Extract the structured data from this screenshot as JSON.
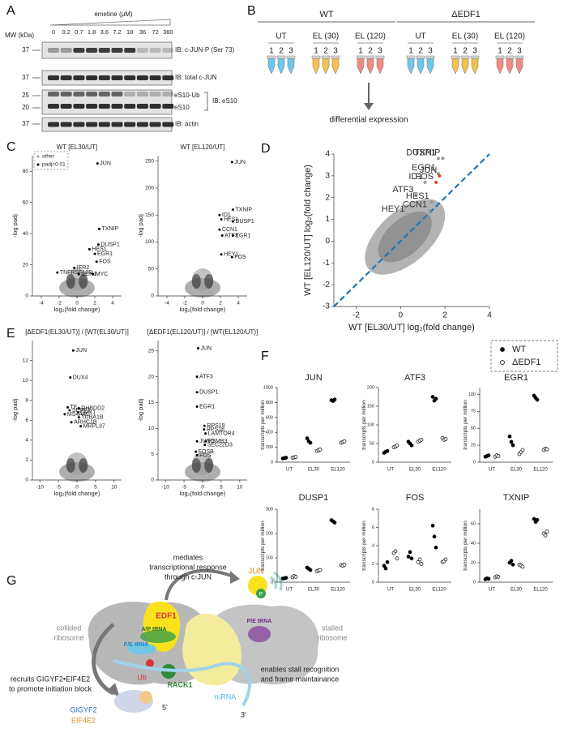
{
  "panel_labels": [
    "A",
    "B",
    "C",
    "D",
    "E",
    "F",
    "G"
  ],
  "blot": {
    "treatment": "emetine (μM)",
    "mw_header": "MW (kDa)",
    "concentrations": [
      "0",
      "0.2",
      "0.7",
      "1.8",
      "3.6",
      "7.2",
      "18",
      "36",
      "72",
      "360"
    ],
    "rows": [
      {
        "mw": [
          "37"
        ],
        "label": "IB: c-JUN-P (Ser 73)"
      },
      {
        "mw": [
          "37"
        ],
        "label": "IB: total c-JUN"
      },
      {
        "mw": [
          "25",
          "20"
        ],
        "bands": [
          "eS10-Ub",
          "eS10"
        ],
        "label": "IB: eS10"
      },
      {
        "mw": [
          "37"
        ],
        "label": "IB: actin"
      }
    ]
  },
  "design": {
    "genotypes": [
      {
        "name": "WT",
        "groups": [
          "UT",
          "EL (30)",
          "EL (120)"
        ]
      },
      {
        "name": "ΔEDF1",
        "groups": [
          "UT",
          "EL (30)",
          "EL (120)"
        ]
      }
    ],
    "replicates": [
      "1",
      "2",
      "3"
    ],
    "outcome": "differential expression"
  },
  "chart_data": [
    {
      "type": "volcano",
      "title": "WT [EL30/UT]",
      "x_label": "log₂(fold change)",
      "y_label": "-log padj",
      "xlim": [
        -5,
        5
      ],
      "ylim": [
        0,
        90
      ],
      "xticks": [
        -4,
        -2,
        0,
        2,
        4
      ],
      "yticks": [
        0,
        20,
        40,
        60,
        80
      ],
      "legend": [
        "other",
        "padj<0.01"
      ],
      "color": "#000000",
      "labels": [
        "JUN",
        "TXNIP",
        "DUSP1",
        "HES1",
        "EGR1",
        "FOS",
        "IER2",
        "TNFRSF10D",
        "CCN1",
        "MYC"
      ],
      "x": [
        2.3,
        2.5,
        2.4,
        1.4,
        2.0,
        2.2,
        -0.3,
        -2.2,
        0.2,
        1.8
      ],
      "values": [
        85,
        43,
        33,
        30,
        27,
        22,
        18,
        15,
        14,
        14
      ]
    },
    {
      "type": "volcano",
      "title": "WT [EL120/UT]",
      "x_label": "log₂(fold change)",
      "y_label": "-log padj",
      "xlim": [
        -5,
        5
      ],
      "ylim": [
        0,
        260
      ],
      "xticks": [
        -4,
        -2,
        0,
        2,
        4
      ],
      "yticks": [
        0,
        50,
        100,
        150,
        200,
        250
      ],
      "color": "#000000",
      "labels": [
        "JUN",
        "TXNIP",
        "ID1",
        "HES1",
        "DUSP1",
        "CCN1",
        "ATF3",
        "EGR1",
        "HEY1",
        "FOS"
      ],
      "x": [
        3.3,
        3.4,
        1.9,
        2.1,
        3.4,
        1.9,
        2.2,
        3.4,
        2.1,
        3.3
      ],
      "values": [
        248,
        160,
        150,
        142,
        138,
        123,
        112,
        112,
        77,
        72
      ]
    },
    {
      "type": "scatter",
      "x_label": "WT [EL30/UT] log₂(fold change)",
      "y_label": "WT [EL120/UT] log₂(fold change)",
      "xlim": [
        -3,
        4
      ],
      "ylim": [
        -3,
        4
      ],
      "xticks": [
        -2,
        0,
        2,
        4
      ],
      "yticks": [
        -3,
        -2,
        -1,
        0,
        1,
        2,
        3,
        4
      ],
      "diagonal": true,
      "line_color": "#1f77b4",
      "labels": [
        "DUSP1",
        "TXNIP",
        "EGR1",
        "JUN",
        "ID1",
        "FOS",
        "ATF3",
        "HES1",
        "CCN1",
        "HEY1"
      ],
      "x": [
        1.7,
        1.9,
        1.7,
        1.75,
        1.1,
        1.6,
        0.7,
        1.4,
        1.3,
        0.3
      ],
      "values": [
        3.8,
        3.8,
        3.1,
        3.0,
        2.7,
        2.7,
        2.1,
        1.8,
        1.4,
        1.2
      ],
      "colors": [
        "#999999",
        "#999999",
        "#999999",
        "#e0442a",
        "#999999",
        "#e0442a",
        "#999999",
        "#999999",
        "#999999",
        "#999999"
      ]
    },
    {
      "type": "volcano",
      "title": "[ΔEDF1(EL30/UT)] / [WT(EL30/UT)]",
      "x_label": "log₂(fold change)",
      "y_label": "-log padj",
      "xlim": [
        -12,
        12
      ],
      "ylim": [
        0,
        14
      ],
      "xticks": [
        -10,
        -5,
        0,
        5,
        10
      ],
      "yticks": [
        0,
        2,
        4,
        6,
        8,
        10,
        12
      ],
      "color": "#000000",
      "labels": [
        "JUN",
        "DUX4",
        "TF",
        "SERF2",
        "RHBDD2",
        "MS4A4E",
        "GPX1",
        "TUBA1B",
        "ARHC1B",
        "MRPL37"
      ],
      "x": [
        -1,
        -1.8,
        -2.5,
        -2,
        0.5,
        -3.3,
        0.3,
        0.5,
        -1.5,
        1
      ],
      "values": [
        13,
        10.3,
        7.3,
        7,
        7.2,
        6.6,
        6.8,
        6.3,
        5.8,
        5.4
      ]
    },
    {
      "type": "volcano",
      "title": "[ΔEDF1(EL120/UT)] / [WT(EL120/UT)]",
      "x_label": "log₂(fold change)",
      "y_label": "-log padj",
      "xlim": [
        -12,
        12
      ],
      "ylim": [
        0,
        27
      ],
      "xticks": [
        -10,
        -5,
        0,
        5,
        10
      ],
      "yticks": [
        0,
        5,
        10,
        15,
        20,
        25
      ],
      "color": "#000000",
      "labels": [
        "JUN",
        "ATF3",
        "DUSP1",
        "EGR1",
        "RPS19",
        "RPS18",
        "LAMTOR4",
        "JUND",
        "PSMB3",
        "SEC22D3",
        "FOSB",
        "FOS"
      ],
      "x": [
        -1.2,
        -1.5,
        -1.5,
        -1.5,
        0.5,
        0.4,
        0.8,
        -1.5,
        0.8,
        0.6,
        -1.8,
        -1.5
      ],
      "values": [
        25.5,
        20,
        17,
        14.2,
        10.5,
        9.8,
        9,
        7.5,
        7.5,
        6.8,
        5.5,
        4.8
      ]
    },
    {
      "type": "dot",
      "title": "JUN",
      "y_label": "transcripts per million",
      "categories": [
        "UT",
        "EL30",
        "EL120"
      ],
      "ylim": [
        0,
        1000
      ],
      "yticks": [
        0,
        200,
        400,
        600,
        800,
        1000
      ],
      "series": [
        {
          "marker": "filled",
          "color": "#000000",
          "values": [
            [
              50,
              55,
              60
            ],
            [
              320,
              280,
              260
            ],
            [
              830,
              820,
              840
            ]
          ]
        },
        {
          "marker": "open",
          "color": "#000000",
          "values": [
            [
              60,
              65,
              70
            ],
            [
              150,
              160,
              170
            ],
            [
              260,
              270,
              280
            ]
          ]
        }
      ]
    },
    {
      "type": "dot",
      "title": "ATF3",
      "y_label": "transcripts per million",
      "categories": [
        "UT",
        "EL30",
        "EL120"
      ],
      "ylim": [
        0,
        200
      ],
      "yticks": [
        0,
        50,
        100,
        150,
        200
      ],
      "series": [
        {
          "marker": "filled",
          "color": "#000000",
          "values": [
            [
              25,
              28,
              30
            ],
            [
              55,
              50,
              45
            ],
            [
              175,
              165,
              170
            ]
          ]
        },
        {
          "marker": "open",
          "color": "#000000",
          "values": [
            [
              40,
              42,
              45
            ],
            [
              55,
              58,
              60
            ],
            [
              65,
              60,
              62
            ]
          ]
        }
      ]
    },
    {
      "type": "dot",
      "title": "EGR1",
      "y_label": "transcripts per million",
      "categories": [
        "UT",
        "EL30",
        "EL120"
      ],
      "ylim": [
        0,
        110
      ],
      "yticks": [
        0,
        25,
        50,
        75,
        100
      ],
      "series": [
        {
          "marker": "filled",
          "color": "#000000",
          "values": [
            [
              8,
              9,
              10
            ],
            [
              38,
              30,
              25
            ],
            [
              98,
              95,
              92
            ]
          ]
        },
        {
          "marker": "open",
          "color": "#000000",
          "values": [
            [
              8,
              10,
              9
            ],
            [
              12,
              15,
              18
            ],
            [
              18,
              20,
              19
            ]
          ]
        }
      ]
    },
    {
      "type": "dot",
      "title": "DUSP1",
      "y_label": "transcripts per million",
      "categories": [
        "UT",
        "EL30",
        "EL120"
      ],
      "ylim": [
        0,
        300
      ],
      "yticks": [
        0,
        100,
        200,
        300
      ],
      "series": [
        {
          "marker": "filled",
          "color": "#000000",
          "values": [
            [
              15,
              16,
              18
            ],
            [
              60,
              55,
              50
            ],
            [
              255,
              250,
              245
            ]
          ]
        },
        {
          "marker": "open",
          "color": "#000000",
          "values": [
            [
              20,
              25,
              22
            ],
            [
              45,
              48,
              50
            ],
            [
              70,
              68,
              72
            ]
          ]
        }
      ]
    },
    {
      "type": "dot",
      "title": "FOS",
      "y_label": "transcripts per million",
      "categories": [
        "UT",
        "EL30",
        "EL120"
      ],
      "ylim": [
        0,
        8
      ],
      "yticks": [
        0,
        2,
        4,
        6,
        8
      ],
      "series": [
        {
          "marker": "filled",
          "color": "#000000",
          "values": [
            [
              1.8,
              1.5,
              2.2
            ],
            [
              2.8,
              3.3,
              2.6
            ],
            [
              6.2,
              5.0,
              3.8
            ]
          ]
        },
        {
          "marker": "open",
          "color": "#000000",
          "values": [
            [
              3.2,
              3.4,
              2.6
            ],
            [
              2.2,
              2.5,
              2.0
            ],
            [
              2.2,
              2.3,
              2.5
            ]
          ]
        }
      ]
    },
    {
      "type": "dot",
      "title": "TXNIP",
      "y_label": "transcripts per million",
      "categories": [
        "UT",
        "EL30",
        "EL120"
      ],
      "ylim": [
        0,
        75
      ],
      "yticks": [
        0,
        20,
        40,
        60
      ],
      "series": [
        {
          "marker": "filled",
          "color": "#000000",
          "values": [
            [
              3,
              4,
              3.5
            ],
            [
              20,
              22,
              18
            ],
            [
              65,
              62,
              64
            ]
          ]
        },
        {
          "marker": "open",
          "color": "#000000",
          "values": [
            [
              5,
              6,
              5.5
            ],
            [
              18,
              17,
              16
            ],
            [
              50,
              48,
              52
            ]
          ]
        }
      ]
    }
  ],
  "legend_F": {
    "entries": [
      "WT",
      "ΔEDF1"
    ]
  },
  "diagram": {
    "jun_effect": [
      "mediates",
      "transcriptional response",
      "through c-JUN"
    ],
    "jun": "JUN",
    "phospho": "P",
    "collided": [
      "collided",
      "ribosome"
    ],
    "stalled": [
      "stalled",
      "ribosome"
    ],
    "edf1": "EDF1",
    "ap_trna": "A/P tRNA",
    "pe_trna_left": "P/E tRNA",
    "pe_trna_right": "P/E tRNA",
    "ub": "Ub",
    "rack1": "RACK1",
    "stall": [
      "enables stall recognition",
      "and frame maintainance"
    ],
    "recruit": [
      "recruits GIGYF2•EIF4E2",
      "to promote initiation block"
    ],
    "mrna": "mRNA",
    "five": "5'",
    "three": "3'",
    "gigyf2": "GIGYF2",
    "eif4e2": "EIF4E2"
  }
}
